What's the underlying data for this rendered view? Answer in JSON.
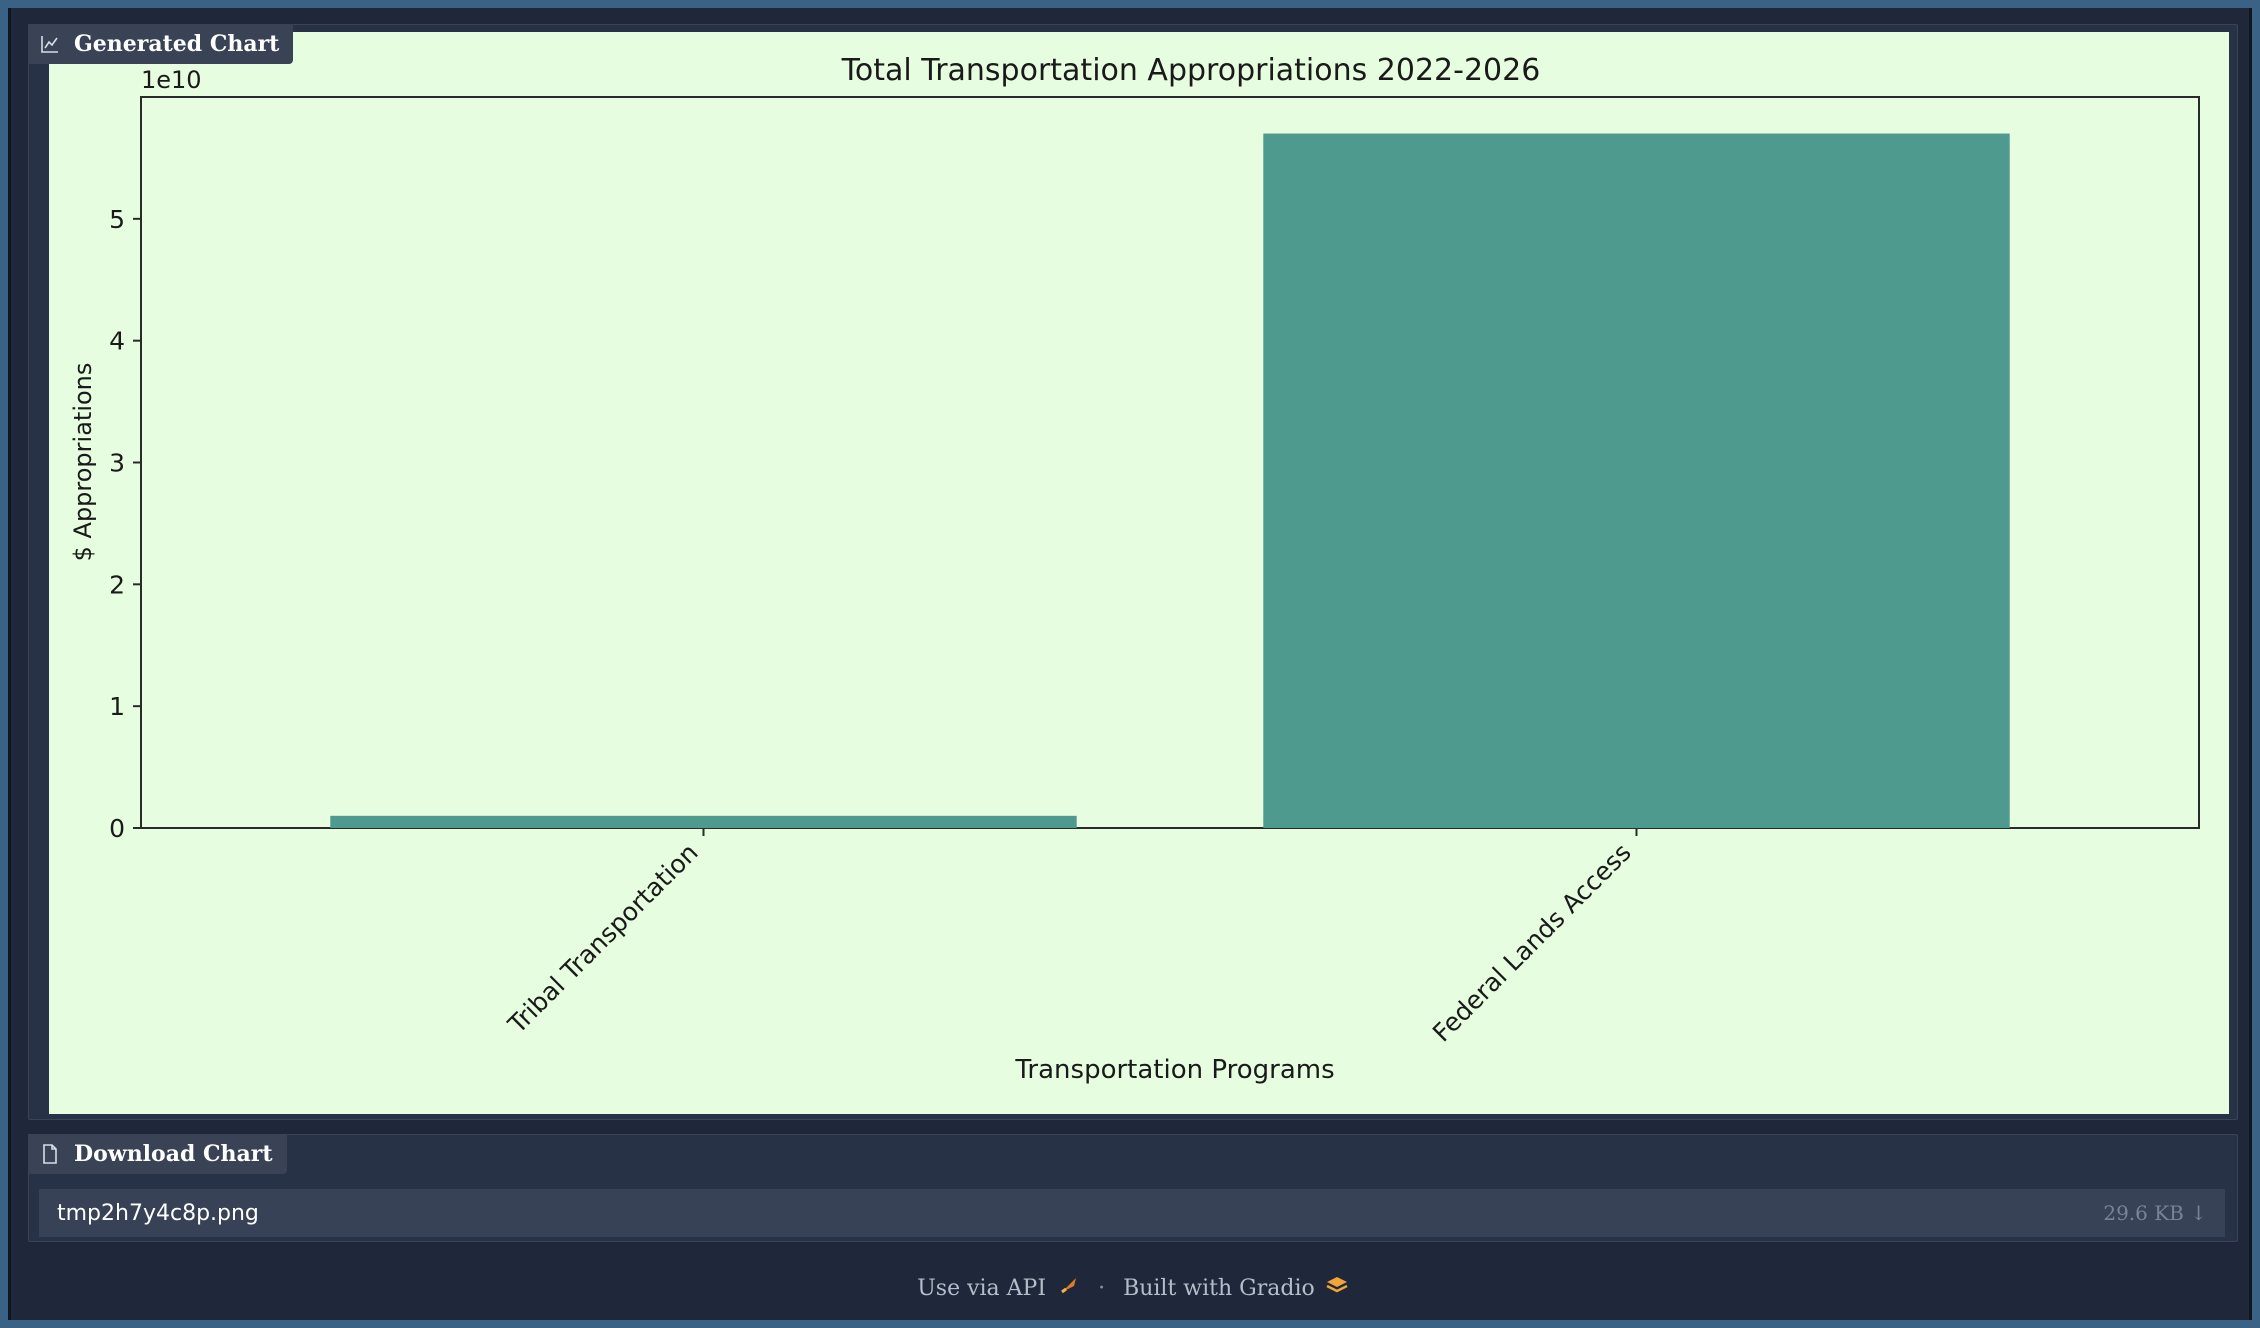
{
  "generated_chart": {
    "label": "Generated Chart",
    "icon": "chart-icon"
  },
  "chart_data": {
    "type": "bar",
    "title": "Total Transportation Appropriations 2022-2026",
    "xlabel": "Transportation Programs",
    "ylabel": "$ Appropriations",
    "offset_text": "1e10",
    "categories": [
      "Tribal Transportation",
      "Federal Lands Access"
    ],
    "values": [
      1000000000,
      57000000000
    ],
    "ylim": [
      0,
      60000000000
    ],
    "yticks": [
      0,
      10000000000,
      20000000000,
      30000000000,
      40000000000,
      50000000000
    ],
    "ytick_labels": [
      "0",
      "1",
      "2",
      "3",
      "4",
      "5"
    ],
    "bar_color": "#4f9a8e",
    "background": "#e6fde0",
    "grid": false
  },
  "download": {
    "label": "Download Chart",
    "icon": "file-icon",
    "filename": "tmp2h7y4c8p.png",
    "size": "29.6 KB ↓"
  },
  "footer": {
    "api_label": "Use via API",
    "separator": "·",
    "built_label": "Built with Gradio"
  }
}
